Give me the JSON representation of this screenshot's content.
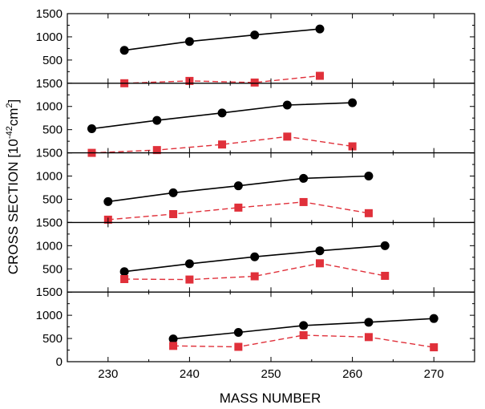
{
  "chart_data": {
    "type": "line",
    "xlabel": "MASS NUMBER",
    "ylabel": "CROSS SECTION [10",
    "ylabel_exp": "-42",
    "ylabel_unit": "cm",
    "ylabel_unit_exp": "2",
    "ylabel_close": "]",
    "xlim": [
      225,
      275
    ],
    "ylim": [
      0,
      1500
    ],
    "x_ticks": [
      230,
      240,
      250,
      260,
      270
    ],
    "x_tick_labels": [
      "230",
      "240",
      "250",
      "260",
      "270"
    ],
    "y_tick_labels": [
      "1500",
      "1000",
      "500",
      "0"
    ],
    "y_tick_values": [
      1500,
      1000,
      500,
      0
    ],
    "colors": {
      "black_series": "#000000",
      "red_series": "#e0303a"
    },
    "panels": [
      {
        "series": [
          {
            "marker": "circle",
            "style": "solid",
            "color": "#000000",
            "x": [
              232,
              240,
              248,
              256
            ],
            "y": [
              710,
              900,
              1040,
              1170
            ]
          },
          {
            "marker": "square",
            "style": "dashed",
            "color": "#e0303a",
            "x": [
              232,
              240,
              248,
              256
            ],
            "y": [
              0,
              50,
              15,
              160
            ]
          }
        ]
      },
      {
        "series": [
          {
            "marker": "circle",
            "style": "solid",
            "color": "#000000",
            "x": [
              228,
              236,
              244,
              252,
              260
            ],
            "y": [
              520,
              700,
              860,
              1030,
              1080
            ]
          },
          {
            "marker": "square",
            "style": "dashed",
            "color": "#e0303a",
            "x": [
              228,
              236,
              244,
              252,
              260
            ],
            "y": [
              0,
              60,
              180,
              350,
              140
            ]
          }
        ]
      },
      {
        "series": [
          {
            "marker": "circle",
            "style": "solid",
            "color": "#000000",
            "x": [
              230,
              238,
              246,
              254,
              262
            ],
            "y": [
              450,
              640,
              790,
              950,
              1000
            ]
          },
          {
            "marker": "square",
            "style": "dashed",
            "color": "#e0303a",
            "x": [
              230,
              238,
              246,
              254,
              262
            ],
            "y": [
              60,
              180,
              320,
              440,
              200
            ]
          }
        ]
      },
      {
        "series": [
          {
            "marker": "circle",
            "style": "solid",
            "color": "#000000",
            "x": [
              232,
              240,
              248,
              256,
              264
            ],
            "y": [
              440,
              610,
              760,
              890,
              1000
            ]
          },
          {
            "marker": "square",
            "style": "dashed",
            "color": "#e0303a",
            "x": [
              232,
              240,
              248,
              256,
              264
            ],
            "y": [
              280,
              270,
              340,
              620,
              350
            ]
          }
        ]
      },
      {
        "series": [
          {
            "marker": "circle",
            "style": "solid",
            "color": "#000000",
            "x": [
              238,
              246,
              254,
              262,
              270
            ],
            "y": [
              490,
              630,
              780,
              850,
              930
            ]
          },
          {
            "marker": "square",
            "style": "dashed",
            "color": "#e0303a",
            "x": [
              238,
              246,
              254,
              262,
              270
            ],
            "y": [
              340,
              320,
              570,
              530,
              310
            ]
          }
        ]
      }
    ]
  }
}
